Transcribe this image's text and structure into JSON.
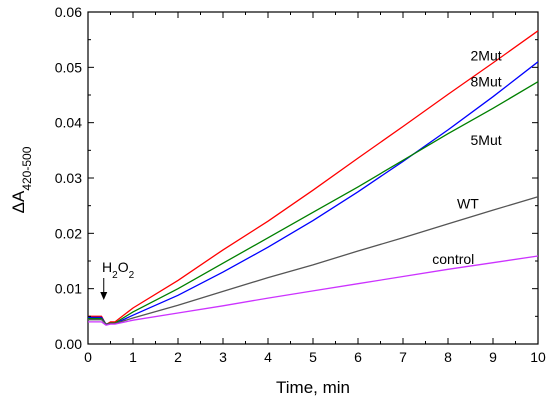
{
  "chart_data": {
    "type": "line",
    "xlabel": "Time, min",
    "ylabel_prefix": "ΔA",
    "ylabel_sub": "420-500",
    "xlim": [
      0,
      10
    ],
    "ylim": [
      0,
      0.06
    ],
    "xticks": [
      "0",
      "1",
      "2",
      "3",
      "4",
      "5",
      "6",
      "7",
      "8",
      "9",
      "10"
    ],
    "yticks": [
      "0.00",
      "0.01",
      "0.02",
      "0.03",
      "0.04",
      "0.05",
      "0.06"
    ],
    "grid": false,
    "annotations": {
      "h2o2": {
        "main": "H",
        "sub1": "2",
        "mid": "O",
        "sub2": "2",
        "x": 0.35
      }
    },
    "series": [
      {
        "name": "2Mut",
        "color": "#ff0000",
        "x": [
          0,
          0.3,
          0.4,
          0.5,
          0.6,
          1,
          2,
          3,
          4,
          5,
          6,
          7,
          8,
          9,
          10
        ],
        "y": [
          0.005,
          0.005,
          0.0035,
          0.004,
          0.004,
          0.0065,
          0.0115,
          0.017,
          0.0222,
          0.0278,
          0.0336,
          0.0393,
          0.0451,
          0.0508,
          0.0566
        ]
      },
      {
        "name": "8Mut",
        "color": "#0000ff",
        "x": [
          0,
          0.3,
          0.4,
          0.5,
          0.6,
          1,
          2,
          3,
          4,
          5,
          6,
          7,
          8,
          9,
          10
        ],
        "y": [
          0.0048,
          0.0048,
          0.0036,
          0.0037,
          0.0037,
          0.0052,
          0.0088,
          0.013,
          0.0175,
          0.0223,
          0.0275,
          0.033,
          0.0387,
          0.0447,
          0.051
        ]
      },
      {
        "name": "5Mut",
        "color": "#008000",
        "x": [
          0,
          0.3,
          0.4,
          0.5,
          0.6,
          1,
          2,
          3,
          4,
          5,
          6,
          7,
          8,
          9,
          10
        ],
        "y": [
          0.0046,
          0.0046,
          0.0036,
          0.0038,
          0.0038,
          0.0058,
          0.01,
          0.0146,
          0.0192,
          0.0238,
          0.0284,
          0.0332,
          0.038,
          0.0426,
          0.0474
        ]
      },
      {
        "name": "WT",
        "color": "#555555",
        "x": [
          0,
          0.3,
          0.4,
          0.5,
          0.6,
          1,
          2,
          3,
          4,
          5,
          6,
          7,
          8,
          9,
          10
        ],
        "y": [
          0.0044,
          0.0044,
          0.0036,
          0.0037,
          0.0037,
          0.0047,
          0.007,
          0.0095,
          0.012,
          0.0143,
          0.0168,
          0.0192,
          0.0217,
          0.0242,
          0.0266
        ]
      },
      {
        "name": "control",
        "color": "#cc33ff",
        "x": [
          0,
          0.3,
          0.4,
          0.5,
          0.6,
          1,
          2,
          3,
          4,
          5,
          6,
          7,
          8,
          9,
          10
        ],
        "y": [
          0.004,
          0.004,
          0.0034,
          0.0036,
          0.0036,
          0.0043,
          0.0056,
          0.0069,
          0.0083,
          0.0096,
          0.0109,
          0.0122,
          0.0135,
          0.0147,
          0.0159
        ]
      }
    ],
    "labels": [
      {
        "text": "2Mut",
        "x": 8.5,
        "y": 0.0512
      },
      {
        "text": "8Mut",
        "x": 8.5,
        "y": 0.0465
      },
      {
        "text": "5Mut",
        "x": 8.5,
        "y": 0.036
      },
      {
        "text": "WT",
        "x": 8.2,
        "y": 0.0245
      },
      {
        "text": "control",
        "x": 7.65,
        "y": 0.0145
      }
    ]
  }
}
